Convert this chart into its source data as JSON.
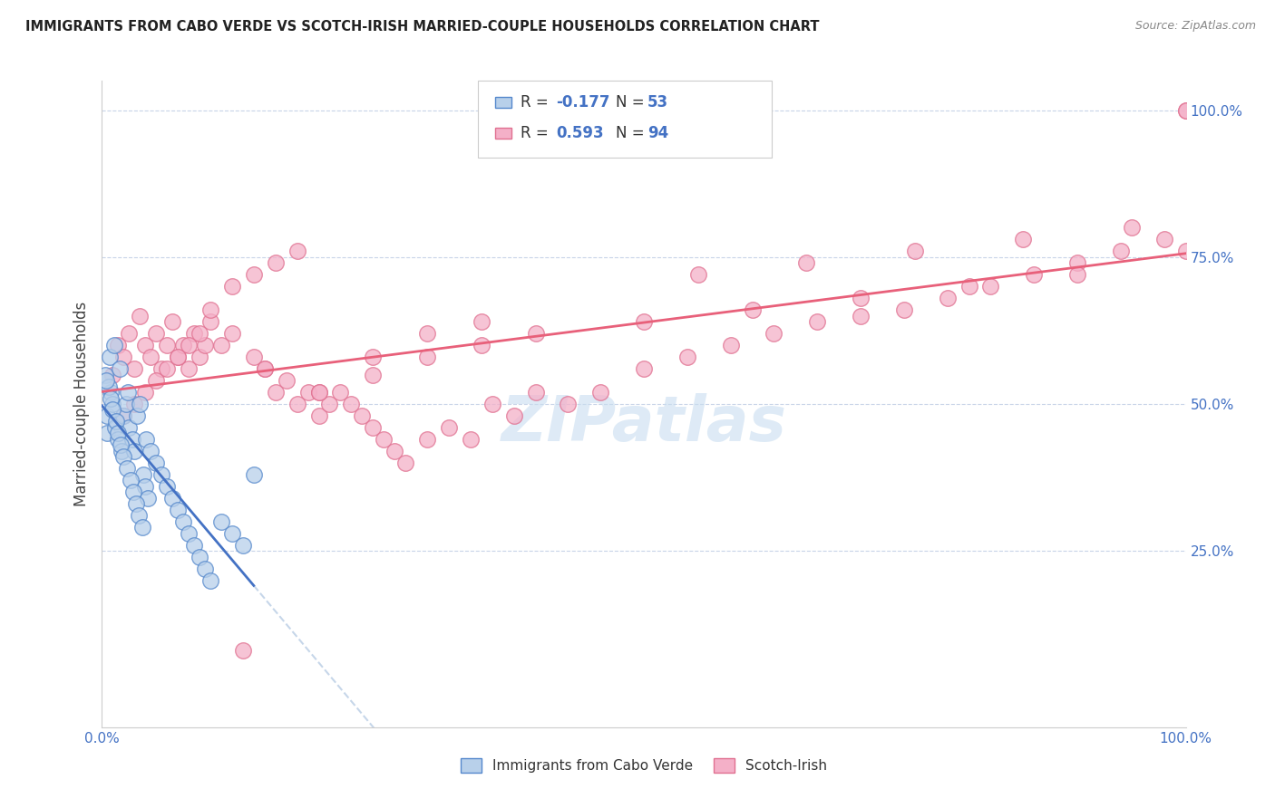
{
  "title": "IMMIGRANTS FROM CABO VERDE VS SCOTCH-IRISH MARRIED-COUPLE HOUSEHOLDS CORRELATION CHART",
  "source": "Source: ZipAtlas.com",
  "ylabel": "Married-couple Households",
  "legend_label1": "Immigrants from Cabo Verde",
  "legend_label2": "Scotch-Irish",
  "R1": -0.177,
  "N1": 53,
  "R2": 0.593,
  "N2": 94,
  "color_blue_fill": "#b8d0ea",
  "color_blue_edge": "#5588cc",
  "color_pink_fill": "#f4b0c8",
  "color_pink_edge": "#e07090",
  "color_blue_line": "#4472c4",
  "color_pink_line": "#e8607a",
  "color_dashed": "#b8cce4",
  "blue_x": [
    0.5,
    0.5,
    0.8,
    1.0,
    1.2,
    1.5,
    1.8,
    2.0,
    2.2,
    2.5,
    2.8,
    3.0,
    3.2,
    3.5,
    3.8,
    4.0,
    4.2,
    0.3,
    0.6,
    0.8,
    1.0,
    1.3,
    1.5,
    1.7,
    2.0,
    2.3,
    2.6,
    2.9,
    3.1,
    3.4,
    3.7,
    4.1,
    4.5,
    5.0,
    5.5,
    6.0,
    6.5,
    7.0,
    7.5,
    8.0,
    8.5,
    9.0,
    9.5,
    10.0,
    11.0,
    12.0,
    13.0,
    14.0,
    0.4,
    0.7,
    1.1,
    1.6,
    2.4
  ],
  "blue_y": [
    48,
    45,
    52,
    50,
    46,
    44,
    42,
    48,
    50,
    46,
    44,
    42,
    48,
    50,
    38,
    36,
    34,
    55,
    53,
    51,
    49,
    47,
    45,
    43,
    41,
    39,
    37,
    35,
    33,
    31,
    29,
    44,
    42,
    40,
    38,
    36,
    34,
    32,
    30,
    28,
    26,
    24,
    22,
    20,
    30,
    28,
    26,
    38,
    54,
    58,
    60,
    56,
    52
  ],
  "pink_x": [
    1.0,
    1.5,
    2.0,
    2.5,
    3.0,
    3.5,
    4.0,
    4.5,
    5.0,
    5.5,
    6.0,
    6.5,
    7.0,
    7.5,
    8.0,
    8.5,
    9.0,
    9.5,
    10.0,
    11.0,
    12.0,
    13.0,
    14.0,
    15.0,
    16.0,
    17.0,
    18.0,
    19.0,
    20.0,
    21.0,
    22.0,
    23.0,
    24.0,
    25.0,
    26.0,
    27.0,
    28.0,
    30.0,
    32.0,
    34.0,
    36.0,
    38.0,
    40.0,
    43.0,
    46.0,
    50.0,
    54.0,
    58.0,
    62.0,
    66.0,
    70.0,
    74.0,
    78.0,
    82.0,
    86.0,
    90.0,
    94.0,
    98.0,
    100.0,
    2.0,
    3.0,
    4.0,
    5.0,
    6.0,
    7.0,
    8.0,
    9.0,
    10.0,
    12.0,
    14.0,
    16.0,
    18.0,
    20.0,
    25.0,
    30.0,
    35.0,
    40.0,
    50.0,
    60.0,
    70.0,
    80.0,
    90.0,
    100.0,
    15.0,
    20.0,
    25.0,
    30.0,
    35.0,
    55.0,
    65.0,
    75.0,
    85.0,
    95.0,
    100.0
  ],
  "pink_y": [
    55,
    60,
    58,
    62,
    56,
    65,
    60,
    58,
    62,
    56,
    60,
    64,
    58,
    60,
    56,
    62,
    58,
    60,
    64,
    60,
    62,
    8,
    58,
    56,
    52,
    54,
    50,
    52,
    48,
    50,
    52,
    50,
    48,
    46,
    44,
    42,
    40,
    44,
    46,
    44,
    50,
    48,
    52,
    50,
    52,
    56,
    58,
    60,
    62,
    64,
    65,
    66,
    68,
    70,
    72,
    74,
    76,
    78,
    100,
    48,
    50,
    52,
    54,
    56,
    58,
    60,
    62,
    66,
    70,
    72,
    74,
    76,
    52,
    55,
    58,
    60,
    62,
    64,
    66,
    68,
    70,
    72,
    76,
    56,
    52,
    58,
    62,
    64,
    72,
    74,
    76,
    78,
    80,
    100
  ]
}
